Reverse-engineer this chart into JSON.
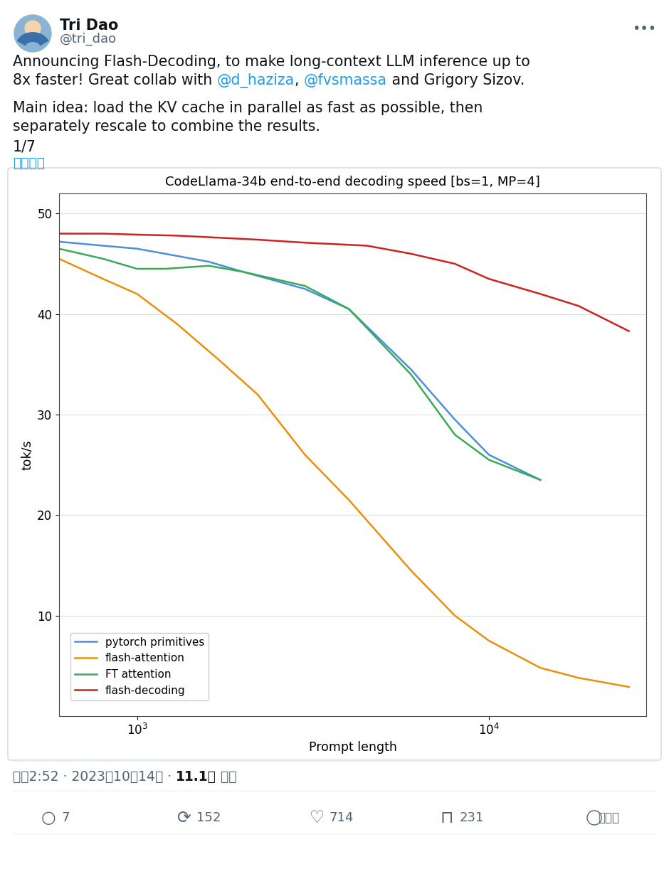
{
  "title": "CodeLlama-34b end-to-end decoding speed [bs=1, MP=4]",
  "xlabel": "Prompt length",
  "ylabel": "tok/s",
  "bg_color": "#ffffff",
  "header": {
    "name": "Tri Dao",
    "handle": "@tri_dao"
  },
  "lines": {
    "pytorch_primitives": {
      "color": "#4c8fdb",
      "label": "pytorch primitives",
      "x": [
        600,
        800,
        1000,
        1200,
        1600,
        2000,
        3000,
        4000,
        6000,
        8000,
        10000,
        14000
      ],
      "y": [
        47.2,
        46.8,
        46.5,
        46.0,
        45.2,
        44.2,
        42.5,
        40.5,
        34.5,
        29.5,
        26.0,
        23.5
      ]
    },
    "flash_attention": {
      "color": "#e8900a",
      "label": "flash-attention",
      "x": [
        600,
        800,
        1000,
        1300,
        1700,
        2200,
        3000,
        4000,
        6000,
        8000,
        10000,
        14000,
        18000,
        25000
      ],
      "y": [
        45.5,
        43.5,
        42.0,
        39.0,
        35.5,
        32.0,
        26.0,
        21.5,
        14.5,
        10.0,
        7.5,
        4.8,
        3.8,
        2.9
      ]
    },
    "ft_attention": {
      "color": "#3aaa55",
      "label": "FT attention",
      "x": [
        600,
        800,
        1000,
        1200,
        1600,
        2000,
        3000,
        4000,
        6000,
        8000,
        10000,
        14000
      ],
      "y": [
        46.5,
        45.5,
        44.5,
        44.5,
        44.8,
        44.2,
        42.8,
        40.5,
        34.0,
        28.0,
        25.5,
        23.5
      ]
    },
    "flash_decoding": {
      "color": "#cc2222",
      "label": "flash-decoding",
      "x": [
        600,
        800,
        1000,
        1300,
        1700,
        2200,
        3000,
        4500,
        6000,
        8000,
        10000,
        14000,
        18000,
        25000
      ],
      "y": [
        48.0,
        48.0,
        47.9,
        47.8,
        47.6,
        47.4,
        47.1,
        46.8,
        46.0,
        45.0,
        43.5,
        42.0,
        40.8,
        38.3
      ]
    }
  },
  "ylim": [
    0,
    52
  ],
  "yticks": [
    10,
    20,
    30,
    40,
    50
  ],
  "xlim_log": [
    600,
    28000
  ],
  "more_btn_color": "#536471",
  "handle_color": "#536471",
  "mention_color": "#1d9bf0",
  "translate_color": "#1d9bf0",
  "footer_date_color": "#536471",
  "footer_bold_color": "#0f1419",
  "divider_color": "#eff3f4",
  "text_color": "#0f1419"
}
